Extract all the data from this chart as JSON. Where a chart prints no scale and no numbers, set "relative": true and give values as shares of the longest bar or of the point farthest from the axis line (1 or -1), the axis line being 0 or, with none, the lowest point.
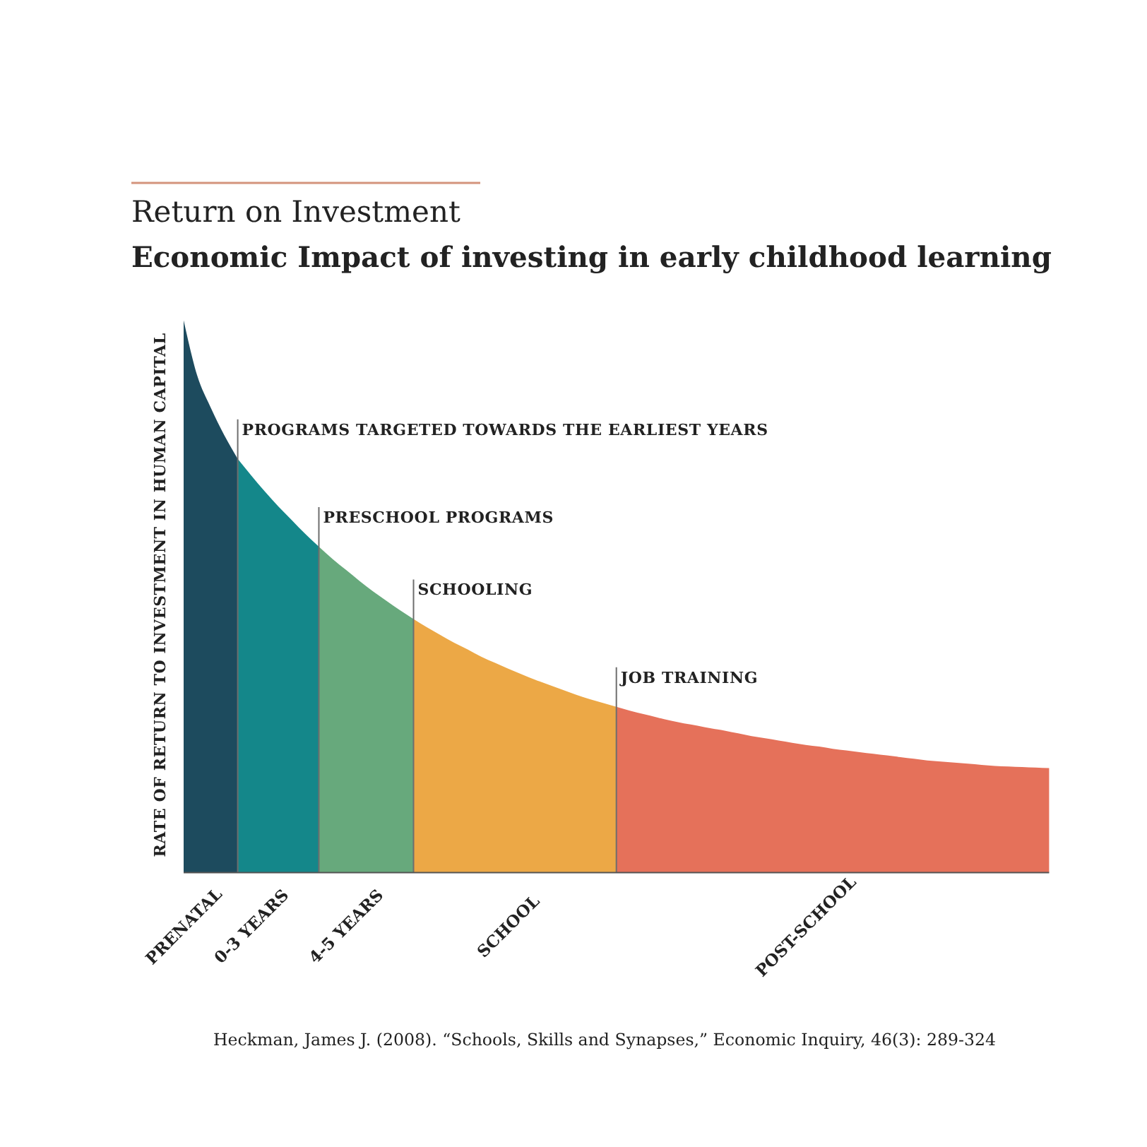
{
  "chart_data": {
    "type": "area",
    "title": "Economic Impact of investing in early childhood learning",
    "subtitle": "Return on Investment",
    "ylabel": "RATE OF RETURN TO INVESTMENT IN HUMAN CAPITAL",
    "relative": true,
    "categories": [
      "PRENATAL",
      null,
      null,
      null,
      null,
      "0-3 YEARS",
      null,
      null,
      null,
      null,
      null,
      null,
      "4-5 YEARS",
      null,
      null,
      null,
      null,
      null,
      null,
      null,
      null,
      null,
      null,
      null,
      "SCHOOL",
      null,
      null,
      null,
      null,
      null,
      null,
      null,
      null,
      null,
      null,
      null,
      null,
      null,
      null,
      null,
      null,
      null,
      null,
      null,
      null,
      null,
      "POST-SCHOOL",
      null,
      null,
      null,
      null,
      null,
      null,
      null,
      null,
      null,
      null,
      null,
      null,
      null,
      null,
      null,
      null,
      null,
      null
    ],
    "series": [
      {
        "color": "#1d4b5e",
        "values": [
          1,
          0.9,
          0.842,
          0.792,
          0.749,
          null,
          null,
          null,
          null,
          null,
          null,
          null,
          null,
          null,
          null,
          null,
          null,
          null,
          null,
          null,
          null,
          null,
          null,
          null,
          null,
          null,
          null,
          null,
          null,
          null,
          null,
          null,
          null,
          null,
          null,
          null,
          null,
          null,
          null,
          null,
          null,
          null,
          null,
          null,
          null,
          null,
          null,
          null,
          null,
          null,
          null,
          null,
          null,
          null,
          null,
          null,
          null,
          null,
          null,
          null,
          null,
          null,
          null,
          null,
          null
        ]
      },
      {
        "color": "#14878a",
        "values": [
          null,
          null,
          null,
          null,
          0.749,
          0.719,
          0.69,
          0.663,
          0.638,
          0.613,
          0.59,
          null,
          null,
          null,
          null,
          null,
          null,
          null,
          null,
          null,
          null,
          null,
          null,
          null,
          null,
          null,
          null,
          null,
          null,
          null,
          null,
          null,
          null,
          null,
          null,
          null,
          null,
          null,
          null,
          null,
          null,
          null,
          null,
          null,
          null,
          null,
          null,
          null,
          null,
          null,
          null,
          null,
          null,
          null,
          null,
          null,
          null,
          null,
          null,
          null,
          null,
          null,
          null,
          null,
          null
        ]
      },
      {
        "color": "#67a97c",
        "values": [
          null,
          null,
          null,
          null,
          null,
          null,
          null,
          null,
          null,
          null,
          0.59,
          0.568,
          0.548,
          0.528,
          0.509,
          0.492,
          0.475,
          0.459,
          null,
          null,
          null,
          null,
          null,
          null,
          null,
          null,
          null,
          null,
          null,
          null,
          null,
          null,
          null,
          null,
          null,
          null,
          null,
          null,
          null,
          null,
          null,
          null,
          null,
          null,
          null,
          null,
          null,
          null,
          null,
          null,
          null,
          null,
          null,
          null,
          null,
          null,
          null,
          null,
          null,
          null,
          null,
          null,
          null,
          null,
          null
        ]
      },
      {
        "color": "#eca846",
        "values": [
          null,
          null,
          null,
          null,
          null,
          null,
          null,
          null,
          null,
          null,
          null,
          null,
          null,
          null,
          null,
          null,
          null,
          0.459,
          0.444,
          0.43,
          0.416,
          0.404,
          0.391,
          0.38,
          0.369,
          0.359,
          0.349,
          0.34,
          0.331,
          0.322,
          0.314,
          0.307,
          0.3,
          null,
          null,
          null,
          null,
          null,
          null,
          null,
          null,
          null,
          null,
          null,
          null,
          null,
          null,
          null,
          null,
          null,
          null,
          null,
          null,
          null,
          null,
          null,
          null,
          null,
          null,
          null,
          null,
          null,
          null,
          null,
          null
        ]
      },
      {
        "color": "#e5715a",
        "values": [
          null,
          null,
          null,
          null,
          null,
          null,
          null,
          null,
          null,
          null,
          null,
          null,
          null,
          null,
          null,
          null,
          null,
          null,
          null,
          null,
          null,
          null,
          null,
          null,
          null,
          null,
          null,
          null,
          null,
          null,
          null,
          null,
          0.3,
          0.293,
          0.287,
          0.281,
          0.275,
          0.27,
          0.266,
          0.261,
          0.257,
          0.252,
          0.247,
          0.243,
          0.239,
          0.235,
          0.231,
          0.228,
          0.224,
          0.221,
          0.218,
          0.215,
          0.212,
          0.209,
          0.206,
          0.203,
          0.201,
          0.199,
          0.197,
          0.195,
          0.193,
          0.192,
          0.191,
          0.19,
          0.189
        ]
      }
    ],
    "annotations": [
      "PROGRAMS TARGETED TOWARDS THE EARLIEST YEARS",
      "PRESCHOOL PROGRAMS",
      "SCHOOLING",
      "JOB TRAINING",
      "Heckman, James J. (2008). “Schools, Skills and Synapses,” Economic Inquiry, 46(3): 289-324"
    ]
  }
}
